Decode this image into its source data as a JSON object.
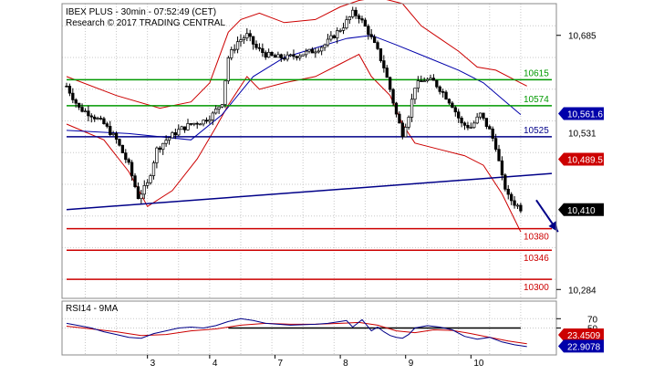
{
  "header": {
    "title": "IBEX PLUS - 30min - 07:52:49 (CET)",
    "subtitle": "Research © 2017 TRADING CENTRAL"
  },
  "chart_data": {
    "type": "candlestick",
    "price_axis": {
      "ylim": [
        10270,
        10735
      ],
      "ticks": [
        10284,
        10685
      ],
      "tick_labels": [
        "10,284",
        "10,685"
      ],
      "partial_label": "10,531"
    },
    "x_axis": {
      "tick_labels": [
        "3",
        "4",
        "7",
        "8",
        "9",
        "10"
      ],
      "tick_positions": [
        26,
        46,
        67,
        88,
        109,
        130
      ]
    },
    "levels": [
      {
        "label": "10615",
        "value": 10615,
        "color": "#009900",
        "label_color": "#009900"
      },
      {
        "label": "10574",
        "value": 10574,
        "color": "#009900",
        "label_color": "#009900"
      },
      {
        "label": "10525",
        "value": 10525,
        "color": "#000088",
        "label_color": "#000088"
      },
      {
        "label": "10380",
        "value": 10380,
        "color": "#cc0000",
        "label_color": "#cc0000"
      },
      {
        "label": "10346",
        "value": 10346,
        "color": "#cc0000",
        "label_color": "#cc0000"
      },
      {
        "label": "10300",
        "value": 10300,
        "color": "#cc0000",
        "label_color": "#cc0000"
      }
    ],
    "trendline": {
      "from": {
        "bar": 0,
        "value": 10410
      },
      "to": {
        "bar": 156,
        "value": 10467
      },
      "color": "#000088"
    },
    "price_badges": [
      {
        "label": "10,561.6",
        "value": 10561.6,
        "bg": "#0000aa",
        "fg": "#ffffff"
      },
      {
        "label": "10,489.5",
        "value": 10489.5,
        "bg": "#cc0000",
        "fg": "#ffffff"
      },
      {
        "label": "10,410",
        "value": 10410,
        "bg": "#000000",
        "fg": "#ffffff"
      }
    ],
    "close_path": [
      [
        0,
        10605
      ],
      [
        4,
        10570
      ],
      [
        8,
        10560
      ],
      [
        12,
        10545
      ],
      [
        16,
        10520
      ],
      [
        20,
        10480
      ],
      [
        23,
        10430
      ],
      [
        26,
        10450
      ],
      [
        29,
        10505
      ],
      [
        32,
        10520
      ],
      [
        36,
        10535
      ],
      [
        40,
        10545
      ],
      [
        44,
        10550
      ],
      [
        47,
        10560
      ],
      [
        50,
        10580
      ],
      [
        52,
        10650
      ],
      [
        55,
        10675
      ],
      [
        58,
        10685
      ],
      [
        61,
        10665
      ],
      [
        64,
        10655
      ],
      [
        67,
        10650
      ],
      [
        71,
        10650
      ],
      [
        75,
        10655
      ],
      [
        79,
        10660
      ],
      [
        83,
        10670
      ],
      [
        86,
        10685
      ],
      [
        89,
        10700
      ],
      [
        92,
        10720
      ],
      [
        94,
        10715
      ],
      [
        97,
        10690
      ],
      [
        100,
        10660
      ],
      [
        102,
        10635
      ],
      [
        104,
        10600
      ],
      [
        106,
        10560
      ],
      [
        108,
        10530
      ],
      [
        110,
        10560
      ],
      [
        112,
        10605
      ],
      [
        115,
        10615
      ],
      [
        118,
        10612
      ],
      [
        121,
        10595
      ],
      [
        124,
        10575
      ],
      [
        127,
        10545
      ],
      [
        130,
        10540
      ],
      [
        133,
        10560
      ],
      [
        136,
        10535
      ],
      [
        138,
        10510
      ],
      [
        140,
        10460
      ],
      [
        142,
        10430
      ],
      [
        144,
        10420
      ],
      [
        146,
        10412
      ]
    ],
    "bollinger": {
      "ma_color": "#0000aa",
      "band_color": "#cc0000",
      "ma": [
        [
          0,
          10535
        ],
        [
          20,
          10530
        ],
        [
          40,
          10520
        ],
        [
          50,
          10560
        ],
        [
          60,
          10620
        ],
        [
          70,
          10650
        ],
        [
          80,
          10665
        ],
        [
          90,
          10680
        ],
        [
          98,
          10685
        ],
        [
          106,
          10670
        ],
        [
          116,
          10650
        ],
        [
          126,
          10630
        ],
        [
          134,
          10610
        ],
        [
          140,
          10585
        ],
        [
          146,
          10560
        ]
      ],
      "upper": [
        [
          0,
          10620
        ],
        [
          16,
          10590
        ],
        [
          30,
          10570
        ],
        [
          40,
          10580
        ],
        [
          46,
          10610
        ],
        [
          52,
          10690
        ],
        [
          56,
          10710
        ],
        [
          62,
          10720
        ],
        [
          70,
          10705
        ],
        [
          80,
          10710
        ],
        [
          88,
          10730
        ],
        [
          94,
          10740
        ],
        [
          100,
          10745
        ],
        [
          104,
          10740
        ],
        [
          108,
          10735
        ],
        [
          114,
          10700
        ],
        [
          120,
          10680
        ],
        [
          126,
          10660
        ],
        [
          132,
          10635
        ],
        [
          138,
          10630
        ],
        [
          144,
          10615
        ],
        [
          148,
          10605
        ]
      ],
      "lower": [
        [
          0,
          10545
        ],
        [
          12,
          10520
        ],
        [
          20,
          10470
        ],
        [
          26,
          10415
        ],
        [
          34,
          10440
        ],
        [
          42,
          10490
        ],
        [
          48,
          10540
        ],
        [
          52,
          10575
        ],
        [
          58,
          10620
        ],
        [
          62,
          10600
        ],
        [
          70,
          10610
        ],
        [
          80,
          10620
        ],
        [
          88,
          10640
        ],
        [
          94,
          10655
        ],
        [
          98,
          10620
        ],
        [
          104,
          10590
        ],
        [
          108,
          10545
        ],
        [
          112,
          10515
        ],
        [
          120,
          10505
        ],
        [
          128,
          10495
        ],
        [
          134,
          10480
        ],
        [
          140,
          10435
        ],
        [
          146,
          10375
        ]
      ]
    },
    "projection_arrow": {
      "from": {
        "bar": 151,
        "value": 10425
      },
      "to": {
        "bar": 158,
        "value": 10375
      },
      "color": "#000088"
    },
    "rsi": {
      "label": "RSI14 - 9MA",
      "ylim": [
        0,
        100
      ],
      "ticks": [
        70,
        50
      ],
      "hline": {
        "value": 50,
        "from_bar": 52,
        "to_bar": 146
      },
      "rsi_values": [
        [
          0,
          60
        ],
        [
          4,
          55
        ],
        [
          8,
          50
        ],
        [
          12,
          42
        ],
        [
          16,
          36
        ],
        [
          20,
          30
        ],
        [
          24,
          28
        ],
        [
          28,
          38
        ],
        [
          32,
          44
        ],
        [
          36,
          50
        ],
        [
          40,
          52
        ],
        [
          44,
          50
        ],
        [
          48,
          55
        ],
        [
          52,
          64
        ],
        [
          56,
          70
        ],
        [
          60,
          66
        ],
        [
          64,
          60
        ],
        [
          68,
          58
        ],
        [
          72,
          56
        ],
        [
          76,
          57
        ],
        [
          80,
          58
        ],
        [
          84,
          60
        ],
        [
          88,
          64
        ],
        [
          90,
          66
        ],
        [
          92,
          52
        ],
        [
          95,
          68
        ],
        [
          98,
          44
        ],
        [
          100,
          52
        ],
        [
          102,
          42
        ],
        [
          104,
          34
        ],
        [
          106,
          30
        ],
        [
          108,
          28
        ],
        [
          110,
          36
        ],
        [
          112,
          50
        ],
        [
          116,
          55
        ],
        [
          120,
          52
        ],
        [
          124,
          46
        ],
        [
          128,
          32
        ],
        [
          132,
          26
        ],
        [
          136,
          30
        ],
        [
          140,
          20
        ],
        [
          144,
          14
        ],
        [
          146,
          12
        ],
        [
          148,
          10
        ]
      ],
      "ma_values": [
        [
          0,
          54
        ],
        [
          8,
          48
        ],
        [
          16,
          42
        ],
        [
          24,
          34
        ],
        [
          32,
          36
        ],
        [
          40,
          44
        ],
        [
          48,
          48
        ],
        [
          56,
          56
        ],
        [
          64,
          60
        ],
        [
          72,
          58
        ],
        [
          80,
          58
        ],
        [
          88,
          60
        ],
        [
          94,
          62
        ],
        [
          100,
          56
        ],
        [
          106,
          44
        ],
        [
          112,
          40
        ],
        [
          118,
          46
        ],
        [
          124,
          45
        ],
        [
          130,
          38
        ],
        [
          136,
          30
        ],
        [
          142,
          22
        ],
        [
          148,
          16
        ]
      ],
      "badges": [
        {
          "label": "23.4509",
          "value": 23.4509,
          "bg": "#cc0000",
          "fg": "#ffffff"
        },
        {
          "label": "22.9078",
          "value": 22.9078,
          "bg": "#0000aa",
          "fg": "#ffffff"
        }
      ]
    }
  }
}
